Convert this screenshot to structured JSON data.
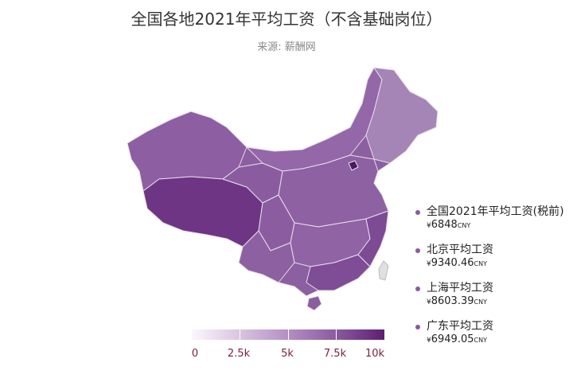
{
  "title": "全国各地2021年平均工资（不含基础岗位）",
  "subtitle": "来源: 薪酬网",
  "legend": [
    {
      "label": "全国2021年平均工资(税前)",
      "currency": "¥",
      "value": "6848",
      "unit": "CNY"
    },
    {
      "label": "北京平均工资",
      "currency": "¥",
      "value": "9340.46",
      "unit": "CNY"
    },
    {
      "label": "上海平均工资",
      "currency": "¥",
      "value": "8603.39",
      "unit": "CNY"
    },
    {
      "label": "广东平均工资",
      "currency": "¥",
      "value": "6949.05",
      "unit": "CNY"
    }
  ],
  "color_scale": {
    "min": 0,
    "max": 10000,
    "ticks": [
      "0",
      "2.5k",
      "5k",
      "7.5k",
      "10k"
    ],
    "colors": [
      "#fbf8fc",
      "#5e1e72"
    ]
  },
  "colors": {
    "accent": "#8a5a9e",
    "tick_text": "#7a1e3e",
    "no_data": "#e0e0e0"
  }
}
